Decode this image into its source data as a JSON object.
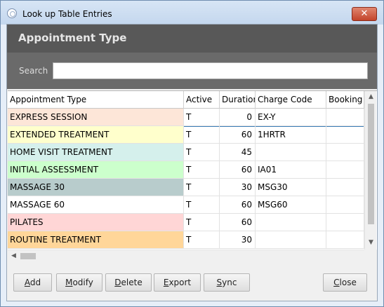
{
  "window": {
    "title": "Look up Table Entries",
    "close_glyph": "✕"
  },
  "header": {
    "title": "Appointment Type"
  },
  "search": {
    "label": "Search",
    "value": "",
    "placeholder": ""
  },
  "grid": {
    "columns": [
      "Appointment Type",
      "Active",
      "Duration",
      "Charge Code",
      "Booking G"
    ],
    "rows": [
      {
        "name": "EXPRESS SESSION",
        "active": "T",
        "duration": "0",
        "charge": "EX-Y",
        "booking": "",
        "color": "#fde6d8"
      },
      {
        "name": "EXTENDED TREATMENT",
        "active": "T",
        "duration": "60",
        "charge": "1HRTR",
        "booking": "",
        "color": "#ffffcc",
        "selected": true
      },
      {
        "name": "HOME VISIT TREATMENT",
        "active": "T",
        "duration": "45",
        "charge": "",
        "booking": "",
        "color": "#d5f0ec"
      },
      {
        "name": "INITIAL ASSESSMENT",
        "active": "T",
        "duration": "60",
        "charge": "IA01",
        "booking": "",
        "color": "#ccffcc"
      },
      {
        "name": "MASSAGE 30",
        "active": "T",
        "duration": "30",
        "charge": "MSG30",
        "booking": "",
        "color": "#b8cccc"
      },
      {
        "name": "MASSAGE 60",
        "active": "T",
        "duration": "60",
        "charge": "MSG60",
        "booking": "",
        "color": "#ffffff"
      },
      {
        "name": "PILATES",
        "active": "T",
        "duration": "60",
        "charge": "",
        "booking": "",
        "color": "#ffd6d6"
      },
      {
        "name": "ROUTINE TREATMENT",
        "active": "T",
        "duration": "30",
        "charge": "",
        "booking": "",
        "color": "#ffd699"
      }
    ]
  },
  "buttons": {
    "add": {
      "first": "A",
      "rest": "dd"
    },
    "modify": {
      "first": "M",
      "rest": "odify"
    },
    "delete": {
      "first": "D",
      "rest": "elete"
    },
    "export": {
      "first": "E",
      "rest": "xport"
    },
    "sync": {
      "first": "S",
      "rest": "ync"
    },
    "close": {
      "first": "C",
      "rest": "lose"
    }
  },
  "scroll": {
    "up": "▲",
    "down": "▼",
    "left": "◀"
  }
}
